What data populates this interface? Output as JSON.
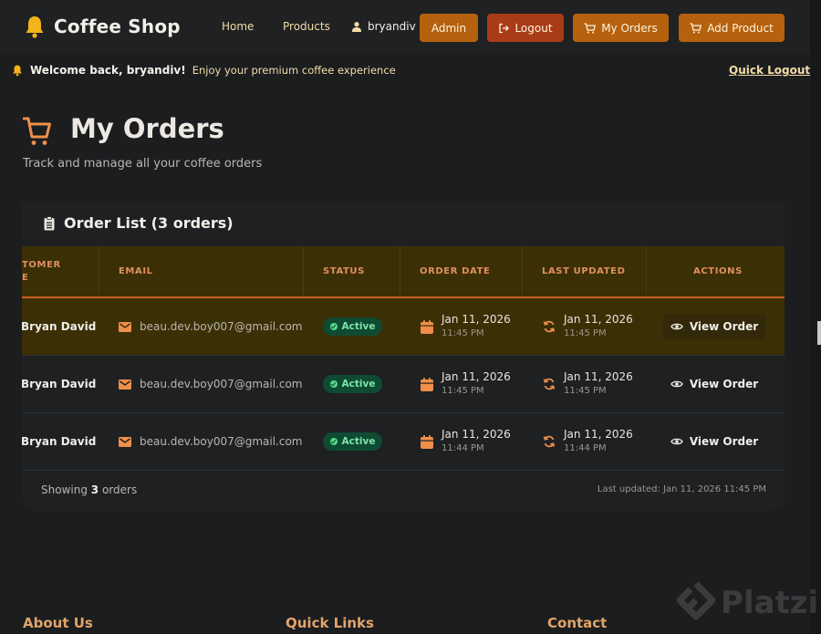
{
  "nav": {
    "brand": "Coffee Shop",
    "links": [
      "Home",
      "Products"
    ],
    "username": "bryandiv",
    "buttons": {
      "admin": "Admin",
      "logout": "Logout",
      "my_orders": "My Orders",
      "add_product": "Add Product"
    }
  },
  "welcome": {
    "greeting": "Welcome back, bryandiv!",
    "subtitle": "Enjoy your premium coffee experience",
    "quick_logout": "Quick Logout"
  },
  "page": {
    "title": "My Orders",
    "subtitle": "Track and manage all your coffee orders"
  },
  "orders": {
    "title": "Order List (3 orders)",
    "columns": {
      "customer_line1": "TOMER",
      "customer_line2": "E",
      "email": "EMAIL",
      "status": "STATUS",
      "order_date": "ORDER DATE",
      "last_updated": "LAST UPDATED",
      "actions": "ACTIONS"
    },
    "rows": [
      {
        "name": "Bryan David",
        "email": "beau.dev.boy007@gmail.com",
        "status": "Active",
        "order_date": "Jan 11, 2026",
        "order_time": "11:45 PM",
        "updated_date": "Jan 11, 2026",
        "updated_time": "11:45 PM",
        "action": "View Order"
      },
      {
        "name": "Bryan David",
        "email": "beau.dev.boy007@gmail.com",
        "status": "Active",
        "order_date": "Jan 11, 2026",
        "order_time": "11:45 PM",
        "updated_date": "Jan 11, 2026",
        "updated_time": "11:45 PM",
        "action": "View Order"
      },
      {
        "name": "Bryan David",
        "email": "beau.dev.boy007@gmail.com",
        "status": "Active",
        "order_date": "Jan 11, 2026",
        "order_time": "11:44 PM",
        "updated_date": "Jan 11, 2026",
        "updated_time": "11:44 PM",
        "action": "View Order"
      }
    ],
    "footer": {
      "showing_prefix": "Showing",
      "count": "3",
      "showing_suffix": "orders",
      "last_updated": "Last updated: Jan 11, 2026 11:45 PM"
    }
  },
  "footer": {
    "about": "About Us",
    "quick_links": "Quick Links",
    "contact": "Contact"
  },
  "watermark": "Platzi",
  "colors": {
    "accent": "#b5610d",
    "logout": "#a93c16",
    "header_row": "#3b2f05",
    "badge_active": "#0f4a33",
    "icon_orange": "#ef8f4a"
  },
  "icons": [
    "bell-icon",
    "user-icon",
    "logout-icon",
    "cart-icon",
    "clipboard-icon",
    "mail-icon",
    "calendar-icon",
    "refresh-icon",
    "eye-icon",
    "check-icon"
  ]
}
